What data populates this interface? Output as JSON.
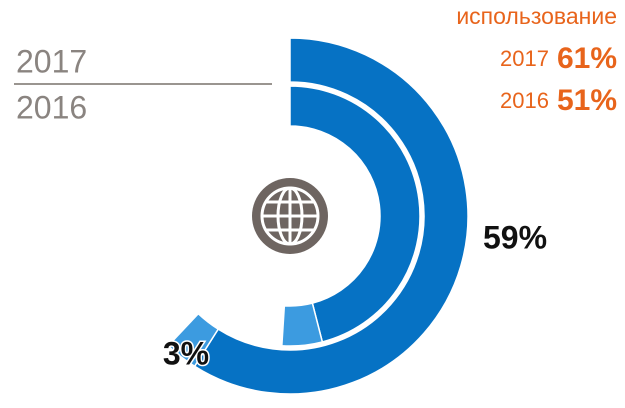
{
  "chart_data": {
    "type": "donut",
    "series": [
      {
        "name": "2017",
        "values": [
          59,
          3
        ],
        "value_labels": [
          "59%",
          "3%"
        ],
        "colors": [
          "#0672c4",
          "#3c9be0"
        ]
      },
      {
        "name": "2016",
        "values": [
          46,
          5
        ],
        "colors": [
          "#0672c4",
          "#3c9be0"
        ]
      }
    ],
    "annotation": {
      "title": "использование",
      "rows": [
        {
          "year": "2017",
          "share": "61%"
        },
        {
          "year": "2016",
          "share": "51%"
        }
      ]
    }
  }
}
